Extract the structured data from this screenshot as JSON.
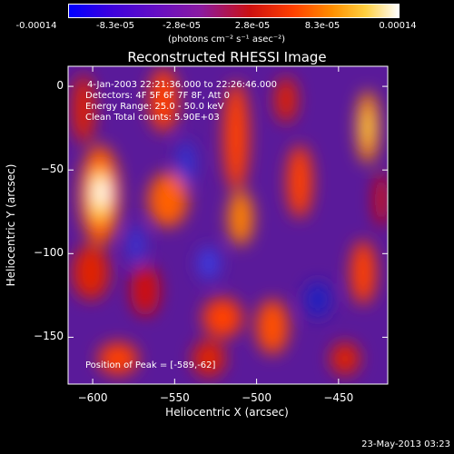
{
  "colorbar": {
    "tick_labels": [
      "-0.00014",
      "-8.3e-05",
      "-2.8e-05",
      "2.8e-05",
      "8.3e-05",
      "0.00014"
    ],
    "unit_label": "(photons cm⁻² s⁻¹ asec⁻²)",
    "range": [
      -0.00014,
      0.00014
    ]
  },
  "chart_data": {
    "type": "heatmap",
    "title": "Reconstructed RHESSI Image",
    "xlabel": "Heliocentric X (arcsec)",
    "ylabel": "Heliocentric Y (arcsec)",
    "xlim": [
      -615,
      -420
    ],
    "ylim": [
      -178,
      12
    ],
    "x_ticks": [
      -600,
      -550,
      -500,
      -450
    ],
    "y_ticks": [
      0,
      -50,
      -100,
      -150
    ],
    "info_lines": [
      "4-Jan-2003 22:21:36.000 to 22:26:46.000",
      "Detectors: 4F 5F 6F 7F 8F, Att 0",
      "Energy Range: 25.0 - 50.0 keV",
      "Clean    Total counts: 5.90E+03"
    ],
    "peak_label": "Position of Peak = [-589,-62]",
    "peak": [
      -589,
      -62
    ],
    "colormap": "blue-purple-red-orange-yellow-white"
  },
  "footer_date": "23-May-2013 03:23"
}
